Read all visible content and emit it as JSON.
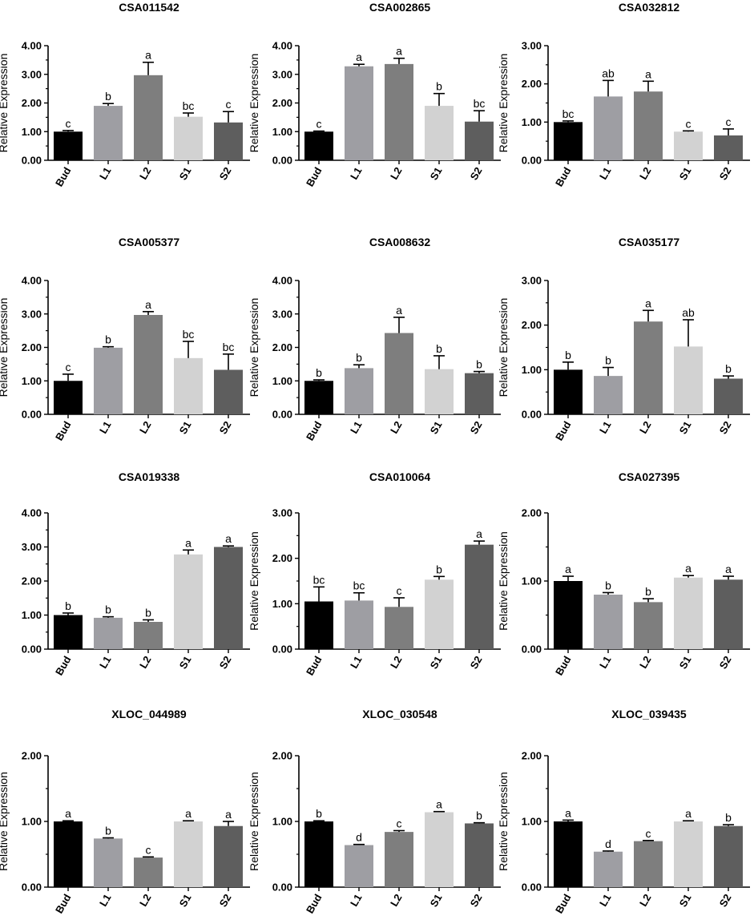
{
  "chart_data": [
    {
      "type": "bar",
      "title": "CSA011542",
      "ylabel": "Relative Expression",
      "ylim": [
        0,
        4
      ],
      "yticks": [
        "0.00",
        "1.00",
        "2.00",
        "3.00",
        "4.00"
      ],
      "categories": [
        "Bud",
        "L1",
        "L2",
        "S1",
        "S2"
      ],
      "values": [
        1.0,
        1.9,
        2.97,
        1.52,
        1.32
      ],
      "errors": [
        0.04,
        0.08,
        0.45,
        0.13,
        0.38
      ],
      "letters": [
        "c",
        "b",
        "a",
        "bc",
        "c"
      ]
    },
    {
      "type": "bar",
      "title": "CSA002865",
      "ylabel": "Relative Expression",
      "ylim": [
        0,
        4
      ],
      "yticks": [
        "0.00",
        "1.00",
        "2.00",
        "3.00",
        "4.00"
      ],
      "categories": [
        "Bud",
        "L1",
        "L2",
        "S1",
        "S2"
      ],
      "values": [
        1.0,
        3.28,
        3.36,
        1.9,
        1.35
      ],
      "errors": [
        0.02,
        0.07,
        0.2,
        0.43,
        0.38
      ],
      "letters": [
        "c",
        "a",
        "a",
        "b",
        "bc"
      ]
    },
    {
      "type": "bar",
      "title": "CSA032812",
      "ylabel": "Relative Expression",
      "ylim": [
        0,
        3
      ],
      "yticks": [
        "0.00",
        "1.00",
        "2.00",
        "3.00"
      ],
      "categories": [
        "Bud",
        "L1",
        "L2",
        "S1",
        "S2"
      ],
      "values": [
        1.0,
        1.67,
        1.8,
        0.75,
        0.65
      ],
      "errors": [
        0.03,
        0.42,
        0.27,
        0.02,
        0.17
      ],
      "letters": [
        "bc",
        "ab",
        "a",
        "c",
        "c"
      ]
    },
    {
      "type": "bar",
      "title": "CSA005377",
      "ylabel": "Relative Expression",
      "ylim": [
        0,
        4
      ],
      "yticks": [
        "0.00",
        "1.00",
        "2.00",
        "3.00",
        "4.00"
      ],
      "categories": [
        "Bud",
        "L1",
        "L2",
        "S1",
        "S2"
      ],
      "values": [
        1.0,
        1.99,
        2.97,
        1.68,
        1.33
      ],
      "errors": [
        0.2,
        0.03,
        0.1,
        0.5,
        0.47
      ],
      "letters": [
        "c",
        "b",
        "a",
        "bc",
        "bc"
      ]
    },
    {
      "type": "bar",
      "title": "CSA008632",
      "ylabel": "Relative Expression",
      "ylim": [
        0,
        4
      ],
      "yticks": [
        "0.00",
        "1.00",
        "2.00",
        "3.00",
        "4.00"
      ],
      "categories": [
        "Bud",
        "L1",
        "L2",
        "S1",
        "S2"
      ],
      "values": [
        1.0,
        1.38,
        2.43,
        1.35,
        1.23
      ],
      "errors": [
        0.03,
        0.1,
        0.47,
        0.4,
        0.05
      ],
      "letters": [
        "b",
        "b",
        "a",
        "b",
        "b"
      ]
    },
    {
      "type": "bar",
      "title": "CSA035177",
      "ylabel": "Relative Expression",
      "ylim": [
        0,
        3
      ],
      "yticks": [
        "0.00",
        "1.00",
        "2.00",
        "3.00"
      ],
      "categories": [
        "Bud",
        "L1",
        "L2",
        "S1",
        "S2"
      ],
      "values": [
        1.0,
        0.86,
        2.08,
        1.52,
        0.8
      ],
      "errors": [
        0.17,
        0.19,
        0.25,
        0.6,
        0.06
      ],
      "letters": [
        "b",
        "b",
        "a",
        "ab",
        "b"
      ]
    },
    {
      "type": "bar",
      "title": "CSA019338",
      "ylabel": "",
      "ylim": [
        0,
        4
      ],
      "yticks": [
        "0.00",
        "1.00",
        "2.00",
        "3.00",
        "4.00"
      ],
      "categories": [
        "Bud",
        "L1",
        "L2",
        "S1",
        "S2"
      ],
      "values": [
        1.0,
        0.92,
        0.8,
        2.78,
        3.0
      ],
      "errors": [
        0.06,
        0.03,
        0.06,
        0.13,
        0.03
      ],
      "letters": [
        "b",
        "b",
        "b",
        "a",
        "a"
      ]
    },
    {
      "type": "bar",
      "title": "CSA010064",
      "ylabel": "Relative Expression",
      "ylim": [
        0,
        3
      ],
      "yticks": [
        "0.00",
        "1.00",
        "2.00",
        "3.00"
      ],
      "categories": [
        "Bud",
        "L1",
        "L2",
        "S1",
        "S2"
      ],
      "values": [
        1.05,
        1.07,
        0.93,
        1.53,
        2.3
      ],
      "errors": [
        0.32,
        0.17,
        0.2,
        0.07,
        0.08
      ],
      "letters": [
        "bc",
        "bc",
        "c",
        "b",
        "a"
      ]
    },
    {
      "type": "bar",
      "title": "CSA027395",
      "ylabel": "Relative Expression",
      "ylim": [
        0,
        2
      ],
      "yticks": [
        "0.00",
        "1.00",
        "2.00"
      ],
      "categories": [
        "Bud",
        "L1",
        "L2",
        "S1",
        "S2"
      ],
      "values": [
        1.0,
        0.8,
        0.69,
        1.05,
        1.02
      ],
      "errors": [
        0.07,
        0.03,
        0.05,
        0.03,
        0.05
      ],
      "letters": [
        "a",
        "b",
        "b",
        "a",
        "a"
      ]
    },
    {
      "type": "bar",
      "title": "XLOC_044989",
      "ylabel": "Relative Expression",
      "ylim": [
        0,
        2
      ],
      "yticks": [
        "0.00",
        "1.00",
        "2.00"
      ],
      "categories": [
        "Bud",
        "L1",
        "L2",
        "S1",
        "S2"
      ],
      "values": [
        1.0,
        0.74,
        0.45,
        1.0,
        0.93
      ],
      "errors": [
        0.01,
        0.01,
        0.01,
        0.01,
        0.07
      ],
      "letters": [
        "a",
        "b",
        "c",
        "a",
        "a"
      ]
    },
    {
      "type": "bar",
      "title": "XLOC_030548",
      "ylabel": "Relative Expression",
      "ylim": [
        0,
        2
      ],
      "yticks": [
        "0.00",
        "1.00",
        "2.00"
      ],
      "categories": [
        "Bud",
        "L1",
        "L2",
        "S1",
        "S2"
      ],
      "values": [
        1.0,
        0.64,
        0.84,
        1.14,
        0.97
      ],
      "errors": [
        0.01,
        0.01,
        0.02,
        0.01,
        0.01
      ],
      "letters": [
        "b",
        "d",
        "c",
        "a",
        "b"
      ]
    },
    {
      "type": "bar",
      "title": "XLOC_039435",
      "ylabel": "Relative Expression",
      "ylim": [
        0,
        2
      ],
      "yticks": [
        "0.00",
        "1.00",
        "2.00"
      ],
      "categories": [
        "Bud",
        "L1",
        "L2",
        "S1",
        "S2"
      ],
      "values": [
        1.0,
        0.54,
        0.7,
        1.0,
        0.93
      ],
      "errors": [
        0.02,
        0.01,
        0.01,
        0.01,
        0.02
      ],
      "letters": [
        "a",
        "d",
        "c",
        "a",
        "b"
      ]
    }
  ],
  "colors": {
    "bars": [
      "#000000",
      "#9e9ea3",
      "#7e7e7e",
      "#d2d2d2",
      "#5e5e5e"
    ],
    "axis": "#000000"
  }
}
